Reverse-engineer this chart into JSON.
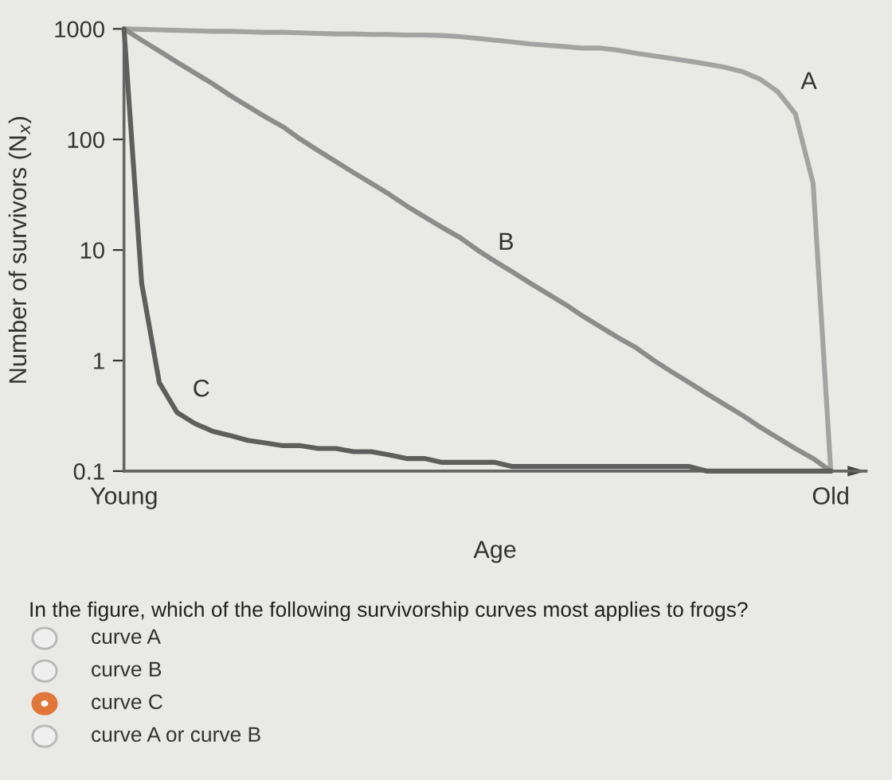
{
  "chart_data": {
    "type": "line",
    "xlabel": "Age",
    "ylabel": "Number of survivors (N$_{x}$)",
    "log": "y",
    "grid": false,
    "legend": false,
    "marker": "none",
    "line_style": "solid",
    "categories": [
      "Young",
      null,
      null,
      null,
      null,
      null,
      null,
      null,
      null,
      null,
      null,
      null,
      null,
      null,
      null,
      null,
      null,
      null,
      null,
      null,
      null,
      null,
      null,
      null,
      null,
      null,
      null,
      null,
      null,
      null,
      null,
      null,
      null,
      null,
      null,
      null,
      null,
      null,
      null,
      null,
      "Old"
    ],
    "ylim": [
      0.1,
      1000
    ],
    "yticks": [
      0.1,
      1,
      10,
      100,
      1000
    ],
    "series": [
      {
        "name": "A",
        "color": "#a3a3a3",
        "values": [
          1000,
          990,
          980,
          970,
          960,
          950,
          950,
          940,
          930,
          930,
          920,
          910,
          900,
          900,
          890,
          890,
          880,
          880,
          870,
          850,
          820,
          790,
          760,
          730,
          710,
          690,
          670,
          670,
          640,
          600,
          570,
          540,
          510,
          480,
          450,
          410,
          350,
          270,
          170,
          40,
          0.1
        ]
      },
      {
        "name": "B",
        "color": "#8c8c8c",
        "values": [
          1000,
          790,
          630,
          500,
          400,
          320,
          250,
          200,
          160,
          130,
          100,
          79,
          63,
          50,
          40,
          32,
          25,
          20,
          16,
          13,
          10,
          7.9,
          6.3,
          5,
          4,
          3.2,
          2.5,
          2,
          1.6,
          1.3,
          1,
          0.79,
          0.63,
          0.5,
          0.4,
          0.32,
          0.25,
          0.2,
          0.16,
          0.13,
          0.1
        ]
      },
      {
        "name": "C",
        "color": "#5e5e5e",
        "values": [
          1000,
          5,
          0.63,
          0.34,
          0.27,
          0.23,
          0.21,
          0.19,
          0.18,
          0.17,
          0.17,
          0.16,
          0.16,
          0.15,
          0.15,
          0.14,
          0.13,
          0.13,
          0.12,
          0.12,
          0.12,
          0.12,
          0.11,
          0.11,
          0.11,
          0.11,
          0.11,
          0.11,
          0.11,
          0.11,
          0.11,
          0.11,
          0.11,
          0.1,
          0.1,
          0.1,
          0.1,
          0.1,
          0.1,
          0.1,
          0.1
        ]
      }
    ],
    "annotations": [
      "In the figure, which of the following survivorship curves most applies to frogs?",
      "curve A",
      "curve B",
      "curve C",
      "curve A or curve B"
    ]
  }
}
